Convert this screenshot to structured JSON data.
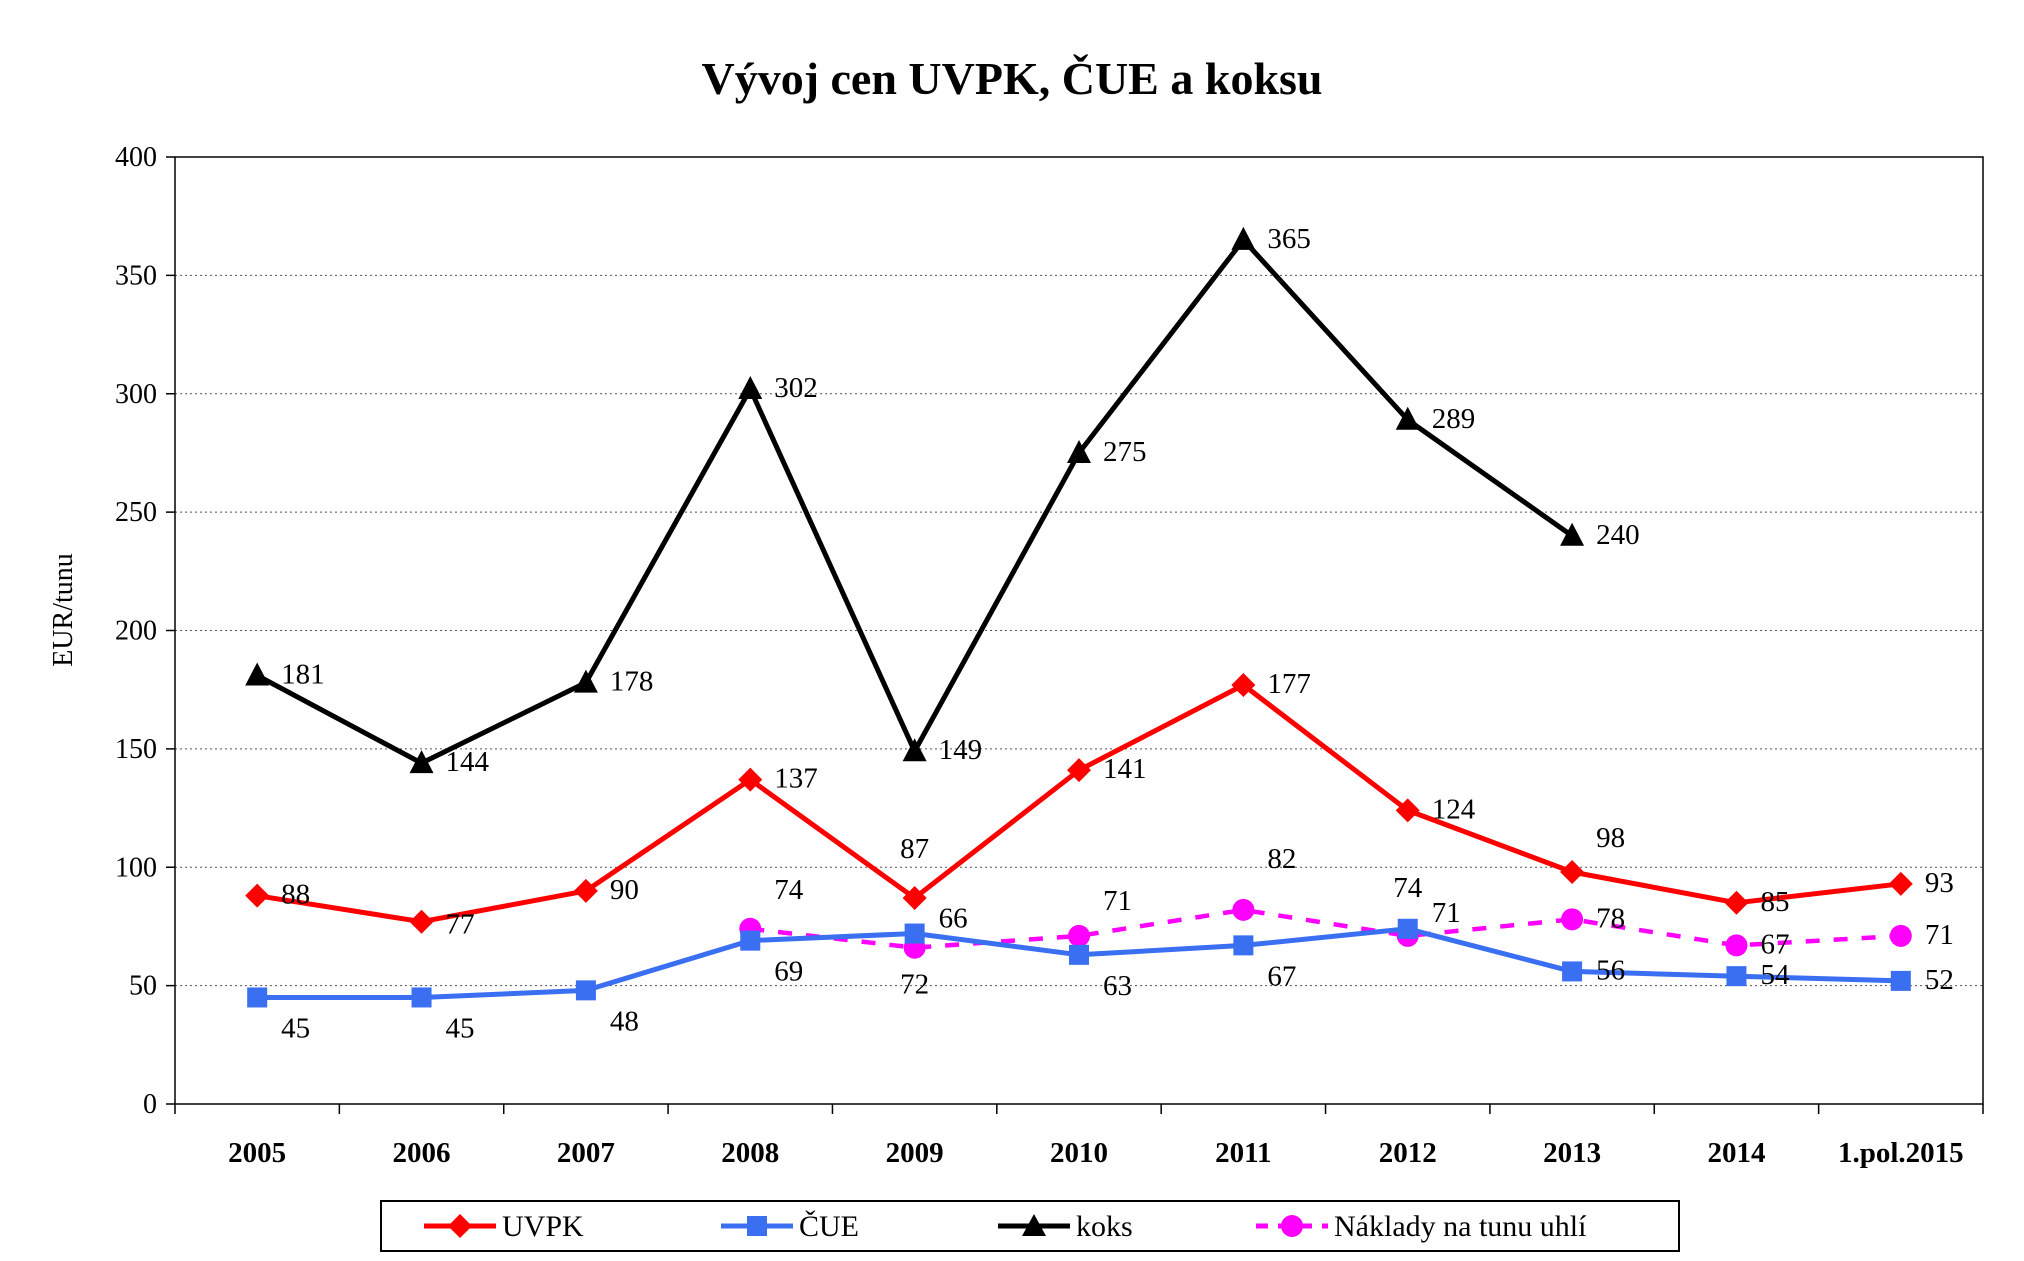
{
  "chart_data": {
    "type": "line",
    "title": "Vývoj cen UVPK, ČUE a koksu",
    "xlabel": "",
    "ylabel": "EUR/tunu",
    "ylim": [
      0,
      400
    ],
    "yticks": [
      0,
      50,
      100,
      150,
      200,
      250,
      300,
      350,
      400
    ],
    "categories": [
      "2005",
      "2006",
      "2007",
      "2008",
      "2009",
      "2010",
      "2011",
      "2012",
      "2013",
      "2014",
      "1.pol.2015"
    ],
    "grid": true,
    "legend_position": "bottom",
    "series": [
      {
        "name": "UVPK",
        "color": "#ff0000",
        "marker": "diamond",
        "line_style": "solid",
        "values": [
          88,
          77,
          90,
          137,
          87,
          141,
          177,
          124,
          98,
          85,
          93
        ],
        "labels": [
          "88",
          "77",
          "90",
          "137",
          "87",
          "141",
          "177",
          "124",
          "98",
          "85",
          "93"
        ]
      },
      {
        "name": "ČUE",
        "color": "#3a6ff2",
        "marker": "square",
        "line_style": "solid",
        "values": [
          45,
          45,
          48,
          69,
          72,
          63,
          67,
          74,
          56,
          54,
          52
        ],
        "labels": [
          "45",
          "45",
          "48",
          "69",
          "72",
          "63",
          "67",
          "74",
          "56",
          "54",
          "52"
        ]
      },
      {
        "name": "koks",
        "color": "#000000",
        "marker": "triangle",
        "line_style": "solid",
        "values": [
          181,
          144,
          178,
          302,
          149,
          275,
          365,
          289,
          240,
          null,
          null
        ],
        "labels": [
          "181",
          "144",
          "178",
          "302",
          "149",
          "275",
          "365",
          "289",
          "240",
          "",
          ""
        ]
      },
      {
        "name": "Náklady na tunu uhlí",
        "color": "#ff00ff",
        "marker": "circle",
        "line_style": "dashed",
        "values": [
          null,
          null,
          null,
          74,
          66,
          71,
          82,
          71,
          78,
          67,
          71
        ],
        "labels": [
          "",
          "",
          "",
          "74",
          "66",
          "71",
          "82",
          "71",
          "78",
          "67",
          "71"
        ]
      }
    ]
  }
}
